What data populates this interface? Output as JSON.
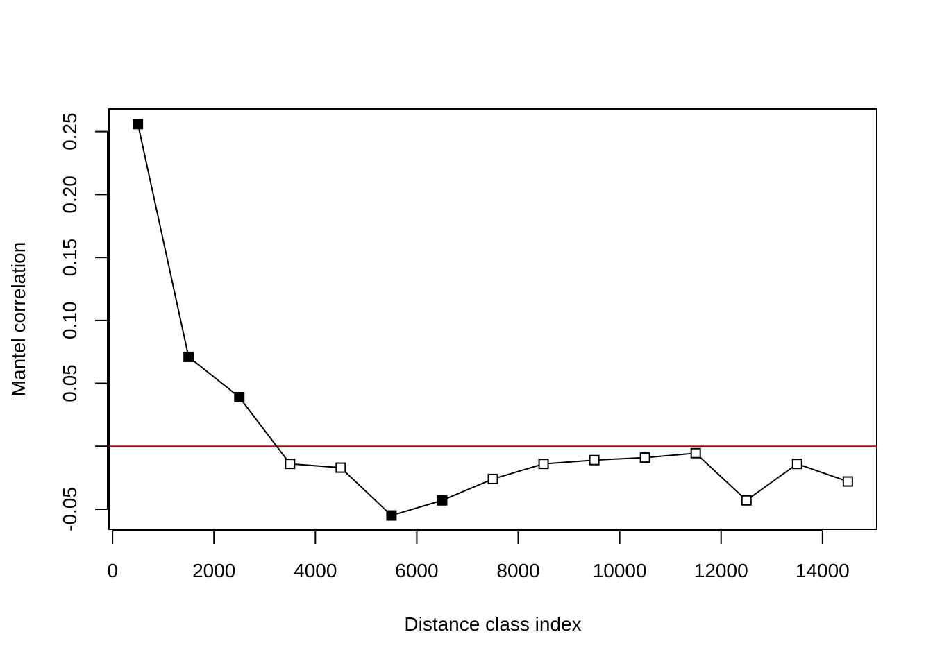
{
  "chart_data": {
    "type": "scatter",
    "title": "",
    "xlabel": "Distance class index",
    "ylabel": "Mantel correlation",
    "xlim": [
      -70,
      15070
    ],
    "ylim": [
      -0.066,
      0.268
    ],
    "x_ticks": [
      0,
      2000,
      4000,
      6000,
      8000,
      10000,
      12000,
      14000
    ],
    "x_tick_labels": [
      "0",
      "2000",
      "4000",
      "6000",
      "8000",
      "10000",
      "12000",
      "14000"
    ],
    "y_ticks": [
      -0.05,
      0.0,
      0.05,
      0.1,
      0.15,
      0.2,
      0.25
    ],
    "y_tick_labels": [
      "-0.05",
      "",
      "0.05",
      "0.10",
      "0.15",
      "0.20",
      "0.25"
    ],
    "reference_line": {
      "y": 0,
      "color": "#cc0000"
    },
    "line_color": "#000000",
    "grid": false,
    "points": [
      {
        "x": 500,
        "y": 0.256,
        "significant": true
      },
      {
        "x": 1500,
        "y": 0.071,
        "significant": true
      },
      {
        "x": 2500,
        "y": 0.039,
        "significant": true
      },
      {
        "x": 3500,
        "y": -0.014,
        "significant": false
      },
      {
        "x": 4500,
        "y": -0.017,
        "significant": false
      },
      {
        "x": 5500,
        "y": -0.055,
        "significant": true
      },
      {
        "x": 6500,
        "y": -0.043,
        "significant": true
      },
      {
        "x": 7500,
        "y": -0.026,
        "significant": false
      },
      {
        "x": 8500,
        "y": -0.014,
        "significant": false
      },
      {
        "x": 9500,
        "y": -0.011,
        "significant": false
      },
      {
        "x": 10500,
        "y": -0.009,
        "significant": false
      },
      {
        "x": 11500,
        "y": -0.0055,
        "significant": false
      },
      {
        "x": 12500,
        "y": -0.043,
        "significant": false
      },
      {
        "x": 13500,
        "y": -0.014,
        "significant": false
      },
      {
        "x": 14500,
        "y": -0.028,
        "significant": false
      }
    ]
  }
}
